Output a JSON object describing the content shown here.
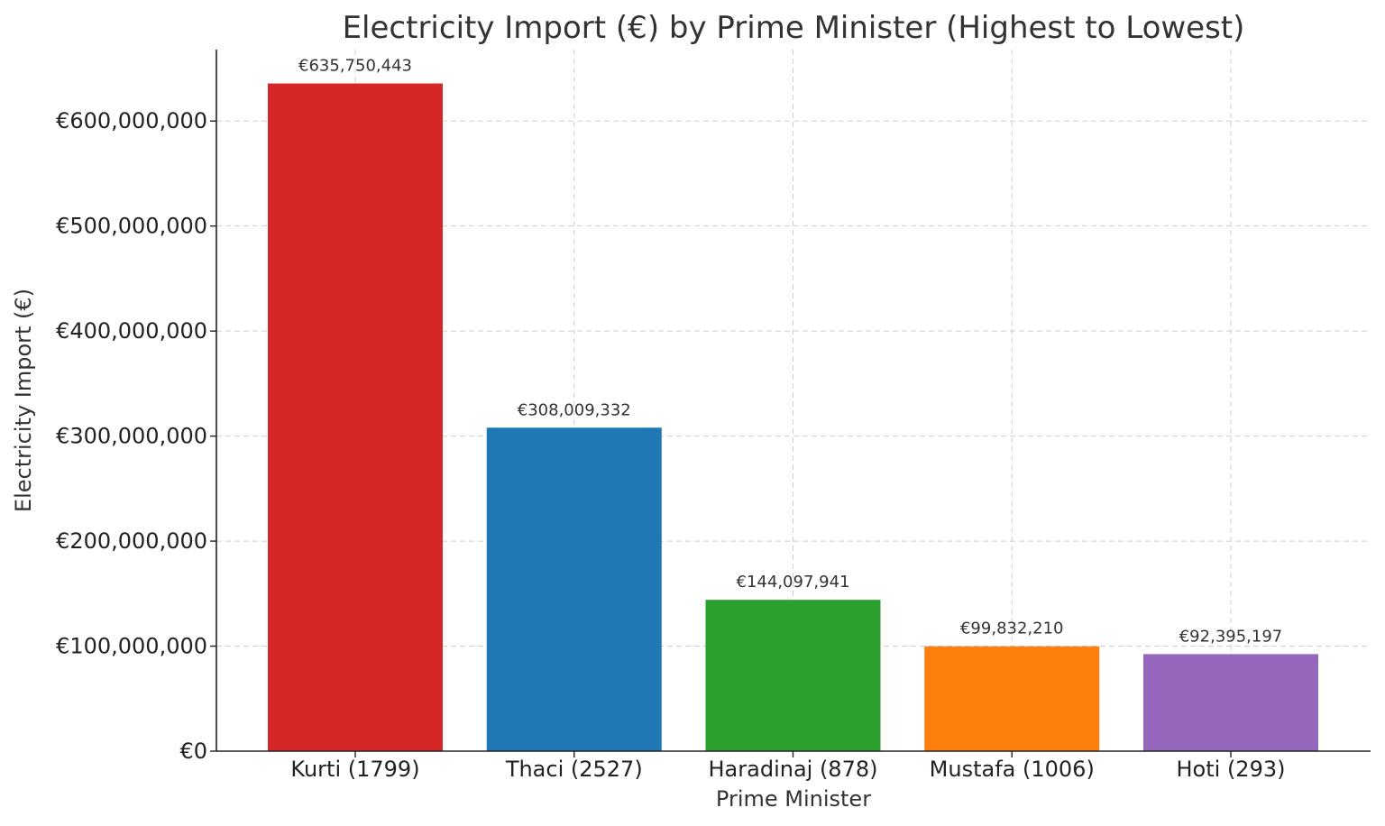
{
  "chart_data": {
    "type": "bar",
    "title": "Electricity Import (€) by Prime Minister (Highest to Lowest)",
    "xlabel": "Prime Minister",
    "ylabel": "Electricity Import (€)",
    "categories": [
      "Kurti (1799)",
      "Thaci (2527)",
      "Haradinaj (878)",
      "Mustafa (1006)",
      "Hoti (293)"
    ],
    "values": [
      635750443,
      308009332,
      144097941,
      99832210,
      92395197
    ],
    "data_labels": [
      "€635,750,443",
      "€308,009,332",
      "€144,097,941",
      "€99,832,210",
      "€92,395,197"
    ],
    "colors": [
      "#d62728",
      "#1f77b4",
      "#2ca02c",
      "#ff7f0e",
      "#9467bd"
    ],
    "ylim": [
      0,
      668000000
    ],
    "yticks": [
      0,
      100000000,
      200000000,
      300000000,
      400000000,
      500000000,
      600000000
    ],
    "ytick_labels": [
      "€0",
      "€100,000,000",
      "€200,000,000",
      "€300,000,000",
      "€400,000,000",
      "€500,000,000",
      "€600,000,000"
    ],
    "grid": true,
    "legend": "none"
  }
}
